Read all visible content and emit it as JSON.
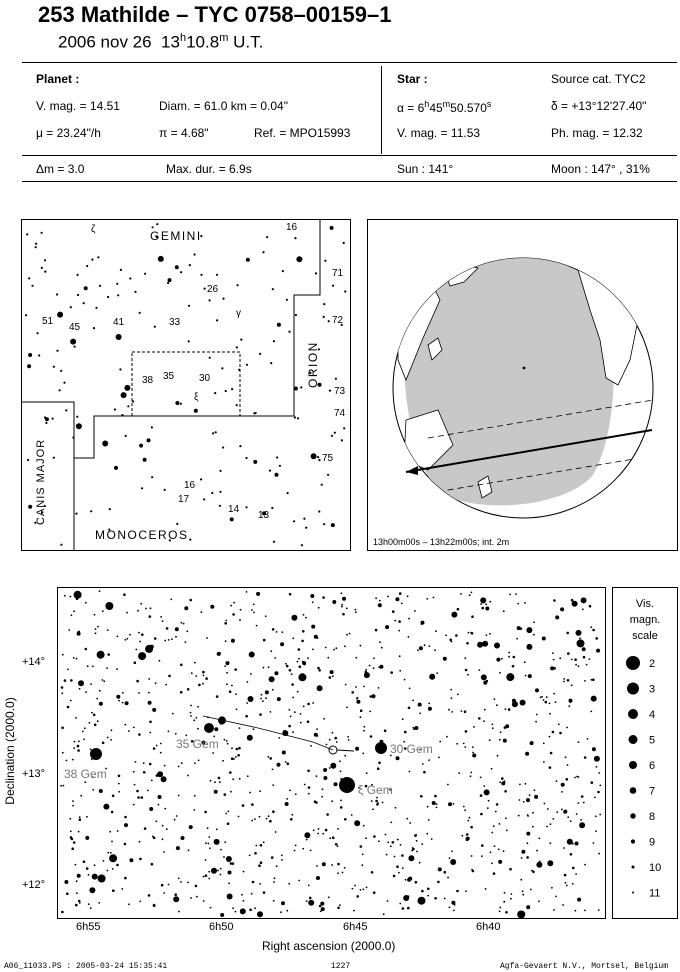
{
  "header": {
    "title": "253 Mathilde  –  TYC 0758–00159–1",
    "date": "2006 nov 26",
    "time_main": "13",
    "time_h": "h",
    "time_min": "10.8",
    "time_m": "m",
    "time_tz": "U.T."
  },
  "planet": {
    "heading": "Planet :",
    "vmag": "V. mag. = 14.51",
    "diam": "Diam. = 61.0 km = 0.04\"",
    "mu": "μ = 23.24\"/h",
    "pi": "π = 4.68\"",
    "ref": "Ref. = MPO15993"
  },
  "star": {
    "heading": "Star :",
    "source": "Source cat. TYC2",
    "alpha_a": "α = 6",
    "alpha_h": "h",
    "alpha_b": "45",
    "alpha_m": "m",
    "alpha_c": "50.570",
    "alpha_s": "s",
    "delta": "δ = +13°12'27.40\"",
    "vmag": "V. mag. = 11.53",
    "phmag": "Ph. mag. = 12.32"
  },
  "bottom_row": {
    "dm": "Δm = 3.0",
    "maxdur": "Max. dur. = 6.9s",
    "sun": "Sun : 141°",
    "moon": "Moon : 147° , 31%"
  },
  "constellation_map": {
    "constellations": [
      "GEMINI",
      "ORION",
      "CANIS MAJOR",
      "MONOCEROS"
    ],
    "star_labels": [
      "ζ",
      "16",
      "71",
      "26",
      "γ",
      "51",
      "45",
      "41",
      "33",
      "72",
      "38",
      "35",
      "30",
      "ξ",
      "73",
      "74",
      "75",
      "16",
      "17",
      "14",
      "13"
    ]
  },
  "globe_map": {
    "caption": "13h00m00s – 13h22m00s; int.  2m"
  },
  "star_chart": {
    "ylabel": "Declination (2000.0)",
    "xlabel": "Right ascension (2000.0)",
    "yticks": [
      "+14°",
      "+13°",
      "+12°"
    ],
    "xticks": [
      "6h55",
      "6h50",
      "6h45",
      "6h40"
    ],
    "labels": [
      "38 Gem",
      "35 Gem",
      "30 Gem",
      "ξ Gem"
    ]
  },
  "mag_scale": {
    "title_1": "Vis.",
    "title_2": "magn.",
    "title_3": "scale",
    "values": [
      "2",
      "3",
      "4",
      "5",
      "6",
      "7",
      "8",
      "9",
      "10",
      "11"
    ]
  },
  "footer": {
    "file": "A06_11033.PS : 2005-03-24 15:35:41",
    "page": "1227",
    "company": "Agfa-Gevaert N.V., Mortsel, Belgium"
  }
}
